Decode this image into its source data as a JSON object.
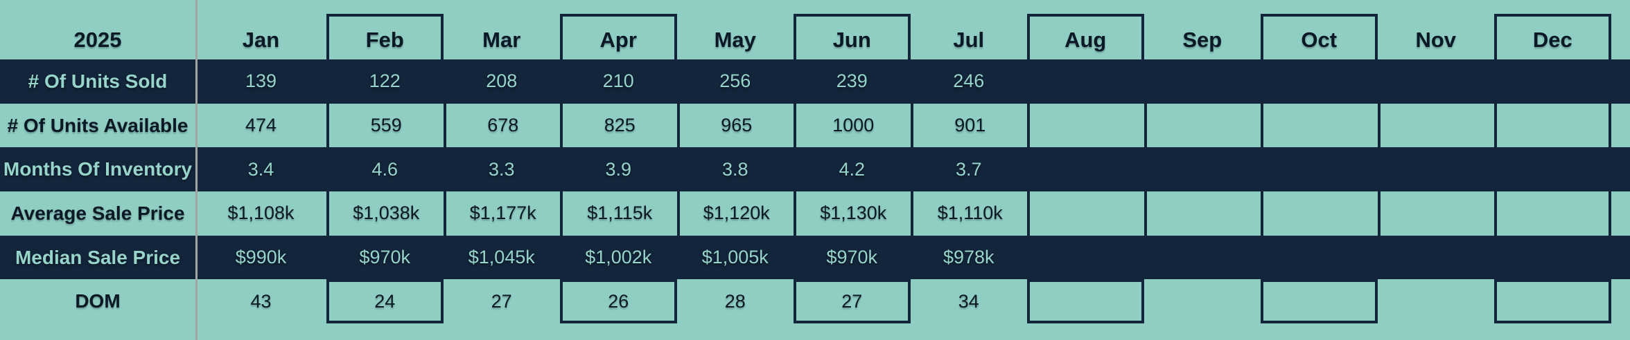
{
  "table": {
    "year": "2025",
    "months": [
      "Jan",
      "Feb",
      "Mar",
      "Apr",
      "May",
      "Jun",
      "Jul",
      "Aug",
      "Sep",
      "Oct",
      "Nov",
      "Dec"
    ],
    "boxed_month_indexes": [
      1,
      3,
      5,
      7,
      9,
      11
    ],
    "rows": [
      {
        "label": "# Of Units Sold",
        "theme": "navy",
        "boxed": false,
        "values": [
          "139",
          "122",
          "208",
          "210",
          "256",
          "239",
          "246",
          "",
          "",
          "",
          "",
          ""
        ]
      },
      {
        "label": "# Of Units Available",
        "theme": "teal",
        "boxed": false,
        "values": [
          "474",
          "559",
          "678",
          "825",
          "965",
          "1000",
          "901",
          "",
          "",
          "",
          "",
          ""
        ]
      },
      {
        "label": "Months Of Inventory",
        "theme": "navy",
        "boxed": false,
        "values": [
          "3.4",
          "4.6",
          "3.3",
          "3.9",
          "3.8",
          "4.2",
          "3.7",
          "",
          "",
          "",
          "",
          ""
        ]
      },
      {
        "label": "Average Sale Price",
        "theme": "teal",
        "boxed": false,
        "values": [
          "$1,108k",
          "$1,038k",
          "$1,177k",
          "$1,115k",
          "$1,120k",
          "$1,130k",
          "$1,110k",
          "",
          "",
          "",
          "",
          ""
        ]
      },
      {
        "label": "Median Sale Price",
        "theme": "navy",
        "boxed": false,
        "values": [
          "$990k",
          "$970k",
          "$1,045k",
          "$1,002k",
          "$1,005k",
          "$970k",
          "$978k",
          "",
          "",
          "",
          "",
          ""
        ]
      },
      {
        "label": "DOM",
        "theme": "teal",
        "boxed": true,
        "values": [
          "43",
          "24",
          "27",
          "26",
          "28",
          "27",
          "34",
          "",
          "",
          "",
          "",
          ""
        ]
      }
    ],
    "colors": {
      "teal_background": "#90CEC3",
      "navy_row": "#13253B",
      "dark_text": "#0B1826",
      "teal_text": "#97D4CA",
      "divider_gray": "#A5A5A5"
    }
  },
  "chart_data": {
    "type": "table",
    "title": "2025",
    "categories": [
      "Jan",
      "Feb",
      "Mar",
      "Apr",
      "May",
      "Jun",
      "Jul",
      "Aug",
      "Sep",
      "Oct",
      "Nov",
      "Dec"
    ],
    "series": [
      {
        "name": "# Of Units Sold",
        "values": [
          139,
          122,
          208,
          210,
          256,
          239,
          246,
          null,
          null,
          null,
          null,
          null
        ]
      },
      {
        "name": "# Of Units Available",
        "values": [
          474,
          559,
          678,
          825,
          965,
          1000,
          901,
          null,
          null,
          null,
          null,
          null
        ]
      },
      {
        "name": "Months Of Inventory",
        "values": [
          3.4,
          4.6,
          3.3,
          3.9,
          3.8,
          4.2,
          3.7,
          null,
          null,
          null,
          null,
          null
        ]
      },
      {
        "name": "Average Sale Price ($k)",
        "values": [
          1108,
          1038,
          1177,
          1115,
          1120,
          1130,
          1110,
          null,
          null,
          null,
          null,
          null
        ]
      },
      {
        "name": "Median Sale Price ($k)",
        "values": [
          990,
          970,
          1045,
          1002,
          1005,
          970,
          978,
          null,
          null,
          null,
          null,
          null
        ]
      },
      {
        "name": "DOM",
        "values": [
          43,
          24,
          27,
          26,
          28,
          27,
          34,
          null,
          null,
          null,
          null,
          null
        ]
      }
    ],
    "layout": {
      "months_with_boxed_columns": [
        "Feb",
        "Apr",
        "Jun",
        "Aug",
        "Oct",
        "Dec"
      ],
      "data_through_month": "Jul"
    }
  }
}
